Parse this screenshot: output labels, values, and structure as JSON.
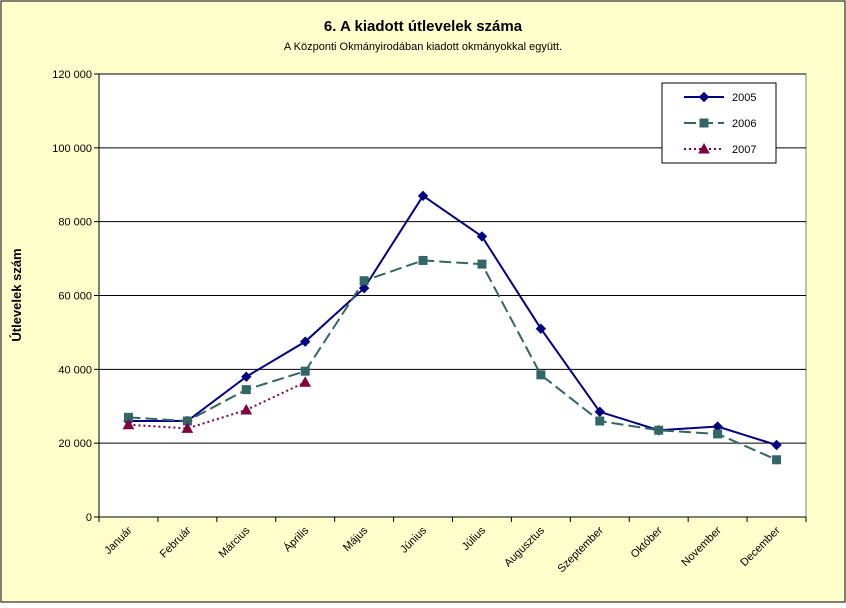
{
  "chart_data": {
    "type": "line",
    "title": "6. A  kiadott útlevelek száma",
    "subtitle": "A Központi Okmányirodában kiadott okmányokkal együtt.",
    "xlabel": "",
    "ylabel": "Útlevelek szám",
    "ylim": [
      0,
      120000
    ],
    "yticks": [
      "0",
      "20 000",
      "40 000",
      "60 000",
      "80 000",
      "100 000",
      "120 000"
    ],
    "ytick_values": [
      0,
      20000,
      40000,
      60000,
      80000,
      100000,
      120000
    ],
    "grid": "horizontal",
    "legend_position": "top-right",
    "background": "#ffffcc",
    "categories": [
      "Január",
      "Február",
      "Március",
      "Április",
      "Május",
      "Június",
      "Július",
      "Augusztus",
      "Szeptember",
      "Október",
      "November",
      "December"
    ],
    "series": [
      {
        "name": "2005",
        "color": "#000080",
        "marker": "diamond",
        "dash": "solid",
        "values": [
          26000,
          26000,
          38000,
          47500,
          62000,
          87000,
          76000,
          51000,
          28500,
          23500,
          24500,
          19500
        ]
      },
      {
        "name": "2006",
        "color": "#336666",
        "marker": "square",
        "dash": "dashed",
        "values": [
          27000,
          26000,
          34500,
          39500,
          64000,
          69500,
          68500,
          38500,
          26000,
          23500,
          22500,
          15500
        ]
      },
      {
        "name": "2007",
        "color": "#800040",
        "marker": "triangle",
        "dash": "dotted",
        "values": [
          25000,
          24000,
          29000,
          36500,
          null,
          null,
          null,
          null,
          null,
          null,
          null,
          null
        ]
      }
    ]
  }
}
